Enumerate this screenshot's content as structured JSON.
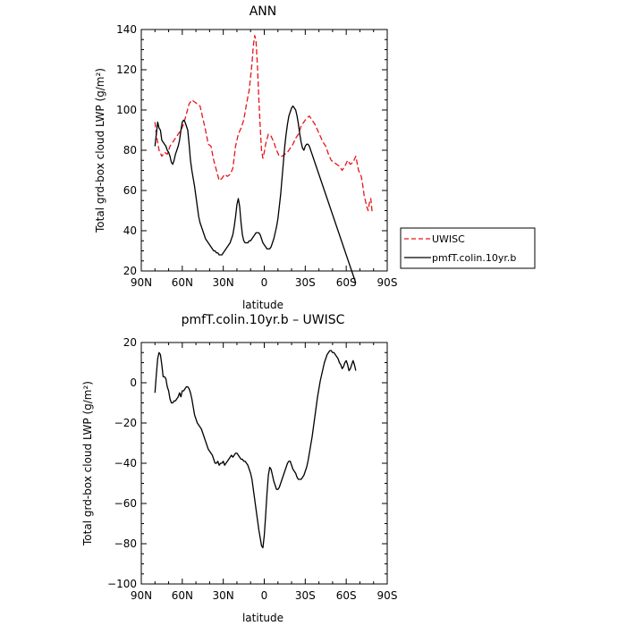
{
  "chart_data": [
    {
      "type": "line",
      "title": "ANN",
      "xlabel": "latitude",
      "ylabel": "Total grd-box cloud LWP (g/m²)",
      "xlim": [
        -90,
        90
      ],
      "ylim": [
        20,
        140
      ],
      "x_ticks": [
        -90,
        -60,
        -30,
        0,
        30,
        60,
        90
      ],
      "x_tick_labels": [
        "90N",
        "60N",
        "30N",
        "0",
        "30S",
        "60S",
        "90S"
      ],
      "y_ticks": [
        20,
        40,
        60,
        80,
        100,
        120,
        140
      ],
      "y_tick_labels": [
        "20",
        "40",
        "60",
        "80",
        "100",
        "120",
        "140"
      ],
      "legend": {
        "placement": "outside-right",
        "entries": [
          "UWISC",
          "pmfT.colin.10yr.b"
        ]
      },
      "series": [
        {
          "name": "UWISC",
          "color": "#e8141a",
          "dash": "dashed",
          "x": [
            -80,
            -79,
            -77,
            -75,
            -73,
            -71,
            -69,
            -67,
            -65,
            -63,
            -61,
            -59,
            -57,
            -55,
            -53,
            -51,
            -49,
            -47,
            -45,
            -43,
            -41,
            -39,
            -37,
            -35,
            -33,
            -31,
            -29,
            -27,
            -25,
            -23,
            -21,
            -19,
            -17,
            -15,
            -13,
            -11,
            -9,
            -8,
            -7,
            -6,
            -5,
            -4,
            -3,
            -2,
            -1,
            0,
            1,
            3,
            5,
            7,
            9,
            11,
            13,
            15,
            17,
            19,
            21,
            23,
            25,
            27,
            29,
            31,
            33,
            35,
            37,
            39,
            41,
            43,
            45,
            47,
            49,
            51,
            53,
            55,
            57,
            59,
            61,
            63,
            65,
            67,
            69,
            71,
            72,
            73,
            74,
            75,
            76,
            77,
            78,
            79
          ],
          "y": [
            94,
            88,
            80,
            77,
            79,
            78,
            82,
            84,
            86,
            88,
            90,
            93,
            98,
            103,
            105,
            104,
            103,
            102,
            96,
            90,
            83,
            82,
            75,
            70,
            65,
            66,
            68,
            67,
            68,
            71,
            82,
            88,
            91,
            95,
            103,
            110,
            123,
            132,
            137,
            134,
            122,
            106,
            92,
            80,
            76,
            79,
            83,
            88,
            87,
            84,
            80,
            77,
            77,
            78,
            79,
            81,
            83,
            86,
            88,
            92,
            94,
            96,
            97,
            95,
            93,
            90,
            87,
            84,
            82,
            78,
            75,
            74,
            73,
            72,
            70,
            72,
            75,
            73,
            74,
            77,
            70,
            67,
            63,
            58,
            55,
            52,
            50,
            54,
            56,
            49
          ]
        },
        {
          "name": "pmfT.colin.10yr.b",
          "color": "#000000",
          "dash": "solid",
          "x": [
            -80,
            -79,
            -78,
            -77,
            -76,
            -75,
            -74,
            -73,
            -72,
            -71,
            -70,
            -69,
            -68,
            -67,
            -66,
            -65,
            -64,
            -63,
            -62,
            -61,
            -60,
            -59,
            -58,
            -57,
            -56,
            -55,
            -54,
            -53,
            -52,
            -51,
            -50,
            -49,
            -48,
            -47,
            -46,
            -45,
            -44,
            -43,
            -42,
            -41,
            -40,
            -39,
            -38,
            -37,
            -36,
            -35,
            -34,
            -33,
            -32,
            -31,
            -30,
            -29,
            -28,
            -27,
            -26,
            -25,
            -24,
            -23,
            -22,
            -21,
            -20,
            -19,
            -18,
            -17,
            -16,
            -15,
            -14,
            -13,
            -12,
            -11,
            -10,
            -9,
            -8,
            -7,
            -6,
            -5,
            -4,
            -3,
            -2,
            -1,
            0,
            1,
            2,
            3,
            4,
            5,
            6,
            7,
            8,
            9,
            10,
            11,
            12,
            13,
            14,
            15,
            16,
            17,
            18,
            19,
            20,
            21,
            22,
            23,
            24,
            25,
            26,
            27,
            28,
            29,
            30,
            31,
            32,
            33,
            34,
            35,
            36,
            37,
            38,
            39,
            40,
            41,
            42,
            43,
            44,
            45,
            46,
            47,
            48,
            49,
            50,
            51,
            52,
            53,
            54,
            55,
            56,
            57,
            58,
            59,
            60,
            61,
            62,
            63,
            64,
            65,
            66,
            67
          ],
          "y": [
            82,
            88,
            94,
            91,
            90,
            85,
            84,
            83,
            82,
            80,
            79,
            77,
            74,
            73,
            75,
            78,
            80,
            82,
            85,
            90,
            94,
            95,
            94,
            92,
            90,
            83,
            75,
            70,
            66,
            62,
            57,
            52,
            47,
            44,
            42,
            40,
            38,
            36,
            35,
            34,
            33,
            32,
            31,
            30,
            30,
            29,
            29,
            28,
            28,
            28,
            29,
            30,
            31,
            32,
            33,
            34,
            36,
            38,
            42,
            47,
            53,
            56,
            52,
            44,
            38,
            35,
            34,
            34,
            34,
            35,
            35,
            36,
            37,
            38,
            39,
            39,
            39,
            38,
            36,
            34,
            33,
            32,
            31,
            31,
            31,
            32,
            34,
            36,
            39,
            42,
            46,
            52,
            58,
            66,
            74,
            82,
            88,
            93,
            97,
            99,
            101,
            102,
            101,
            100,
            97,
            93,
            88,
            84,
            81,
            80,
            82,
            83,
            83,
            82,
            80,
            78,
            76,
            74,
            72,
            70,
            68,
            66,
            64,
            62,
            60,
            58,
            56,
            54,
            52,
            50,
            48,
            46,
            44,
            42,
            40,
            38,
            36,
            34,
            32,
            30,
            28,
            26,
            24,
            22,
            20,
            18,
            16,
            14
          ]
        }
      ]
    },
    {
      "type": "line",
      "title": "pmfT.colin.10yr.b – UWISC",
      "xlabel": "latitude",
      "ylabel": "Total grd-box cloud LWP (g/m²)",
      "xlim": [
        -90,
        90
      ],
      "ylim": [
        -100,
        20
      ],
      "x_ticks": [
        -90,
        -60,
        -30,
        0,
        30,
        60,
        90
      ],
      "x_tick_labels": [
        "90N",
        "60N",
        "30N",
        "0",
        "30S",
        "60S",
        "90S"
      ],
      "y_ticks": [
        -100,
        -80,
        -60,
        -40,
        -20,
        0,
        20
      ],
      "y_tick_labels": [
        "−100",
        "−80",
        "−60",
        "−40",
        "−20",
        "0",
        "20"
      ],
      "series": [
        {
          "color": "#000000",
          "dash": "solid",
          "x": [
            -80,
            -79,
            -78,
            -77,
            -76,
            -75,
            -74,
            -73,
            -72,
            -71,
            -70,
            -69,
            -68,
            -67,
            -66,
            -65,
            -64,
            -63,
            -62,
            -61,
            -60,
            -59,
            -58,
            -57,
            -56,
            -55,
            -54,
            -53,
            -52,
            -51,
            -50,
            -49,
            -48,
            -47,
            -46,
            -45,
            -44,
            -43,
            -42,
            -41,
            -40,
            -39,
            -38,
            -37,
            -36,
            -35,
            -34,
            -33,
            -32,
            -31,
            -30,
            -29,
            -28,
            -27,
            -26,
            -25,
            -24,
            -23,
            -22,
            -21,
            -20,
            -19,
            -18,
            -17,
            -16,
            -15,
            -14,
            -13,
            -12,
            -11,
            -10,
            -9,
            -8,
            -7,
            -6,
            -5,
            -4,
            -3,
            -2,
            -1,
            0,
            1,
            2,
            3,
            4,
            5,
            6,
            7,
            8,
            9,
            10,
            11,
            12,
            13,
            14,
            15,
            16,
            17,
            18,
            19,
            20,
            21,
            22,
            23,
            24,
            25,
            26,
            27,
            28,
            29,
            30,
            31,
            32,
            33,
            34,
            35,
            36,
            37,
            38,
            39,
            40,
            41,
            42,
            43,
            44,
            45,
            46,
            47,
            48,
            49,
            50,
            51,
            52,
            53,
            54,
            55,
            56,
            57,
            58,
            59,
            60,
            61,
            62,
            63,
            64,
            65,
            66,
            67
          ],
          "y": [
            -5,
            4,
            12,
            15,
            14,
            9,
            3,
            3,
            2,
            -2,
            -4,
            -8,
            -10,
            -10,
            -9,
            -9,
            -8,
            -7,
            -5,
            -7,
            -4,
            -4,
            -3,
            -2,
            -2,
            -3,
            -5,
            -8,
            -12,
            -16,
            -18,
            -20,
            -21,
            -22,
            -23,
            -25,
            -27,
            -29,
            -31,
            -33,
            -34,
            -35,
            -36,
            -38,
            -40,
            -40,
            -39,
            -41,
            -40,
            -40,
            -39,
            -41,
            -40,
            -39,
            -38,
            -37,
            -36,
            -37,
            -36,
            -35,
            -35,
            -36,
            -37,
            -38,
            -38,
            -39,
            -39,
            -40,
            -41,
            -43,
            -45,
            -48,
            -53,
            -58,
            -63,
            -68,
            -73,
            -77,
            -81,
            -82,
            -76,
            -66,
            -55,
            -46,
            -42,
            -43,
            -46,
            -49,
            -51,
            -53,
            -53,
            -52,
            -50,
            -48,
            -46,
            -44,
            -42,
            -40,
            -39,
            -39,
            -41,
            -43,
            -44,
            -45,
            -47,
            -48,
            -48,
            -48,
            -47,
            -46,
            -44,
            -42,
            -39,
            -35,
            -31,
            -27,
            -22,
            -17,
            -12,
            -7,
            -3,
            1,
            4,
            7,
            10,
            12,
            14,
            15,
            16,
            16,
            15,
            15,
            14,
            13,
            12,
            10,
            9,
            7,
            8,
            10,
            11,
            9,
            6,
            7,
            9,
            11,
            9,
            6
          ]
        }
      ]
    }
  ]
}
